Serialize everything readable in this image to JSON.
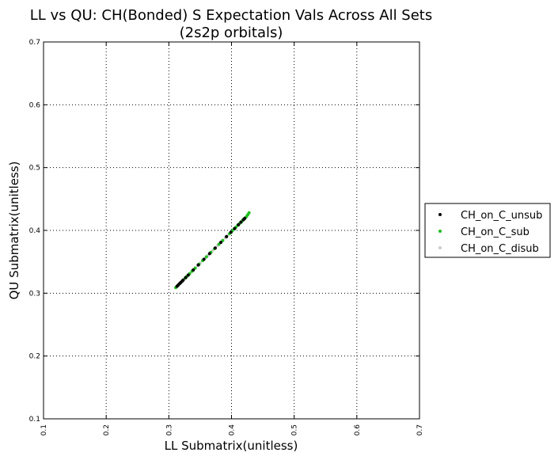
{
  "chart_data": {
    "type": "scatter",
    "title": "LL vs QU: CH(Bonded) S Expectation Vals Across All Sets",
    "subtitle": "(2s2p orbitals)",
    "xlabel": "LL Submatrix(unitless)",
    "ylabel": "QU Submatrix(unitless)",
    "xlim": [
      0.1,
      0.7
    ],
    "ylim": [
      0.1,
      0.7
    ],
    "xticks": [
      "0.1",
      "0.2",
      "0.3",
      "0.4",
      "0.5",
      "0.6",
      "0.7"
    ],
    "yticks": [
      "0.1",
      "0.2",
      "0.3",
      "0.4",
      "0.5",
      "0.6",
      "0.7"
    ],
    "grid": true,
    "legend_position": "outside-right",
    "series": [
      {
        "name": "CH_on_C_unsub",
        "color": "#000000",
        "points": [
          [
            0.313,
            0.311
          ],
          [
            0.315,
            0.313
          ],
          [
            0.317,
            0.315
          ],
          [
            0.319,
            0.317
          ],
          [
            0.321,
            0.319
          ],
          [
            0.323,
            0.321
          ],
          [
            0.327,
            0.325
          ],
          [
            0.331,
            0.329
          ],
          [
            0.339,
            0.337
          ],
          [
            0.347,
            0.345
          ],
          [
            0.356,
            0.354
          ],
          [
            0.365,
            0.363
          ],
          [
            0.374,
            0.372
          ],
          [
            0.383,
            0.381
          ],
          [
            0.392,
            0.39
          ],
          [
            0.399,
            0.397
          ],
          [
            0.405,
            0.403
          ],
          [
            0.411,
            0.409
          ],
          [
            0.415,
            0.413
          ],
          [
            0.419,
            0.417
          ],
          [
            0.421,
            0.419
          ]
        ]
      },
      {
        "name": "CH_on_C_sub",
        "color": "#1fbf1f",
        "points": [
          [
            0.311,
            0.309
          ],
          [
            0.314,
            0.312
          ],
          [
            0.318,
            0.316
          ],
          [
            0.322,
            0.32
          ],
          [
            0.326,
            0.324
          ],
          [
            0.329,
            0.327
          ],
          [
            0.333,
            0.331
          ],
          [
            0.337,
            0.335
          ],
          [
            0.342,
            0.34
          ],
          [
            0.348,
            0.346
          ],
          [
            0.354,
            0.352
          ],
          [
            0.36,
            0.358
          ],
          [
            0.367,
            0.365
          ],
          [
            0.373,
            0.371
          ],
          [
            0.38,
            0.378
          ],
          [
            0.386,
            0.384
          ],
          [
            0.392,
            0.39
          ],
          [
            0.397,
            0.395
          ],
          [
            0.401,
            0.399
          ],
          [
            0.404,
            0.402
          ],
          [
            0.407,
            0.405
          ],
          [
            0.41,
            0.408
          ],
          [
            0.413,
            0.411
          ],
          [
            0.416,
            0.414
          ],
          [
            0.418,
            0.416
          ],
          [
            0.42,
            0.418
          ],
          [
            0.422,
            0.42
          ],
          [
            0.424,
            0.422
          ],
          [
            0.426,
            0.425
          ],
          [
            0.428,
            0.428
          ]
        ]
      },
      {
        "name": "CH_on_C_disub",
        "color": "#cccccc",
        "points": [
          [
            0.33,
            0.328
          ],
          [
            0.334,
            0.332
          ],
          [
            0.338,
            0.336
          ],
          [
            0.342,
            0.34
          ],
          [
            0.346,
            0.344
          ],
          [
            0.35,
            0.348
          ],
          [
            0.354,
            0.352
          ],
          [
            0.358,
            0.356
          ],
          [
            0.362,
            0.36
          ],
          [
            0.366,
            0.364
          ],
          [
            0.37,
            0.368
          ],
          [
            0.374,
            0.372
          ],
          [
            0.378,
            0.376
          ],
          [
            0.382,
            0.38
          ],
          [
            0.386,
            0.384
          ],
          [
            0.39,
            0.388
          ],
          [
            0.394,
            0.392
          ],
          [
            0.398,
            0.396
          ],
          [
            0.402,
            0.4
          ],
          [
            0.406,
            0.404
          ],
          [
            0.41,
            0.408
          ]
        ]
      }
    ]
  }
}
